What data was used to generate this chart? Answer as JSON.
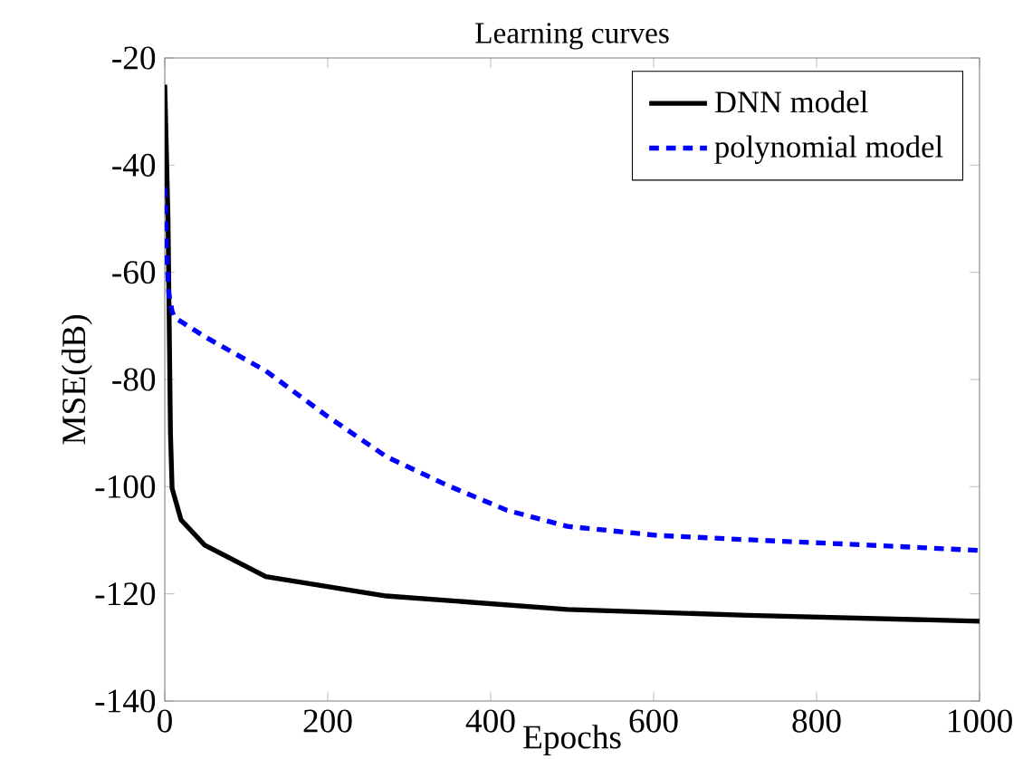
{
  "chart_data": {
    "type": "line",
    "title": "Learning curves",
    "xlabel": "Epochs",
    "ylabel": "MSE(dB)",
    "xlim": [
      0,
      1000
    ],
    "xticks": [
      0,
      200,
      400,
      600,
      800,
      1000
    ],
    "ylim": [
      -140,
      -20
    ],
    "yticks": [
      -140,
      -120,
      -100,
      -80,
      -60,
      -40,
      -20
    ],
    "legend": "top right",
    "series": [
      {
        "name": "DNN model",
        "color": "#000000",
        "line_style": "solid",
        "x": [
          0,
          4,
          7,
          9,
          20,
          49,
          124,
          272,
          494,
          716,
          1000
        ],
        "values": [
          -25,
          -50,
          -90,
          -100.3,
          -106.2,
          -110.9,
          -116.8,
          -120.4,
          -122.9,
          -124,
          -125.1
        ]
      },
      {
        "name": "polynomial model",
        "color": "#0000ff",
        "line_style": "dashed",
        "x": [
          0,
          2,
          5,
          9,
          12,
          49,
          124,
          198,
          272,
          346,
          420,
          494,
          605,
          716,
          864,
          1000
        ],
        "values": [
          -44.2,
          -55,
          -64,
          -67.3,
          -68.4,
          -72,
          -78.4,
          -86.7,
          -94.4,
          -99.7,
          -104.4,
          -107.4,
          -109.1,
          -109.9,
          -110.9,
          -111.9
        ]
      }
    ]
  }
}
